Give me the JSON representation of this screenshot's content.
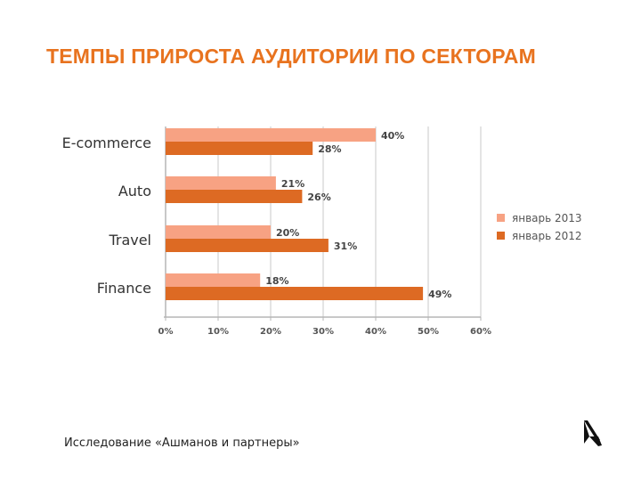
{
  "slide": {
    "title": "ТЕМПЫ ПРИРОСТА АУДИТОРИИ ПО СЕКТОРАМ",
    "source": "Исследование «Ашманов и партнеры»",
    "accent_color": "#e8731f"
  },
  "chart_data": {
    "type": "bar",
    "orientation": "horizontal",
    "title": "",
    "xlabel": "",
    "ylabel": "",
    "categories": [
      "E-commerce",
      "Auto",
      "Travel",
      "Finance"
    ],
    "series": [
      {
        "name": "январь 2013",
        "color": "#f7a283",
        "values": [
          40,
          21,
          20,
          18
        ],
        "labels": [
          "40%",
          "21%",
          "20%",
          "18%"
        ]
      },
      {
        "name": "январь 2012",
        "color": "#dd6a23",
        "values": [
          28,
          26,
          31,
          49
        ],
        "labels": [
          "28%",
          "26%",
          "31%",
          "49%"
        ]
      }
    ],
    "xlim": [
      0,
      60
    ],
    "xticks": [
      0,
      10,
      20,
      30,
      40,
      50,
      60
    ],
    "xtick_labels": [
      "0%",
      "10%",
      "20%",
      "30%",
      "40%",
      "50%",
      "60%"
    ],
    "grid": true,
    "legend_position": "right"
  }
}
